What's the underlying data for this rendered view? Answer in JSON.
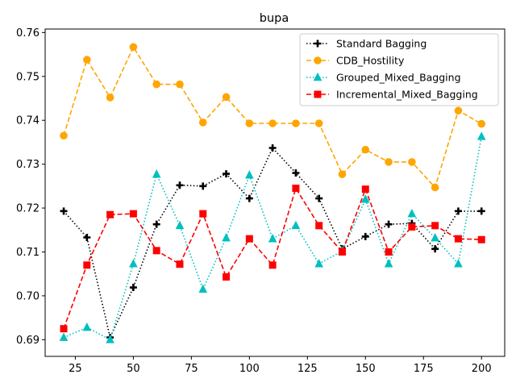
{
  "chart_data": {
    "type": "line",
    "title": "bupa",
    "xlabel": "",
    "ylabel": "",
    "xlim": [
      12,
      210
    ],
    "ylim": [
      0.6862,
      0.7608
    ],
    "x_ticks": [
      25,
      50,
      75,
      100,
      125,
      150,
      175,
      200
    ],
    "y_ticks": [
      0.69,
      0.7,
      0.71,
      0.72,
      0.73,
      0.74,
      0.75,
      0.76
    ],
    "x_tick_labels": [
      "25",
      "50",
      "75",
      "100",
      "125",
      "150",
      "175",
      "200"
    ],
    "y_tick_labels": [
      "0.69",
      "0.70",
      "0.71",
      "0.72",
      "0.73",
      "0.74",
      "0.75",
      "0.76"
    ],
    "grid": false,
    "legend_position": "top-right",
    "x": [
      20,
      30,
      40,
      50,
      60,
      70,
      80,
      90,
      100,
      110,
      120,
      130,
      140,
      150,
      160,
      170,
      180,
      190,
      200
    ],
    "series": [
      {
        "name": "Standard Bagging",
        "color": "#000000",
        "linestyle": "dotted",
        "marker": "plus",
        "values": [
          0.7193,
          0.7133,
          0.6905,
          0.7019,
          0.7163,
          0.7252,
          0.725,
          0.7278,
          0.7222,
          0.7337,
          0.728,
          0.7222,
          0.7107,
          0.7135,
          0.7163,
          0.7165,
          0.7107,
          0.7193,
          0.7193
        ]
      },
      {
        "name": "CDB_Hostility",
        "color": "#FFA500",
        "linestyle": "dashed",
        "marker": "circle",
        "values": [
          0.7365,
          0.7538,
          0.7452,
          0.7567,
          0.7482,
          0.7482,
          0.7395,
          0.7453,
          0.7393,
          0.7393,
          0.7393,
          0.7393,
          0.7277,
          0.7333,
          0.7305,
          0.7305,
          0.7247,
          0.7422,
          0.7392
        ]
      },
      {
        "name": "Grouped_Mixed_Bagging",
        "color": "#00BFBF",
        "linestyle": "dotted",
        "marker": "triangle",
        "values": [
          0.6905,
          0.6928,
          0.69,
          0.7073,
          0.7277,
          0.716,
          0.7015,
          0.7132,
          0.7275,
          0.713,
          0.716,
          0.7073,
          0.7102,
          0.722,
          0.7073,
          0.7187,
          0.7132,
          0.7073,
          0.7363
        ]
      },
      {
        "name": "Incremental_Mixed_Bagging",
        "color": "#FF0000",
        "linestyle": "dashed",
        "marker": "square",
        "values": [
          0.6925,
          0.707,
          0.7185,
          0.7187,
          0.7103,
          0.7072,
          0.7187,
          0.7043,
          0.713,
          0.707,
          0.7245,
          0.716,
          0.71,
          0.7243,
          0.71,
          0.7157,
          0.716,
          0.713,
          0.7128
        ]
      }
    ]
  }
}
